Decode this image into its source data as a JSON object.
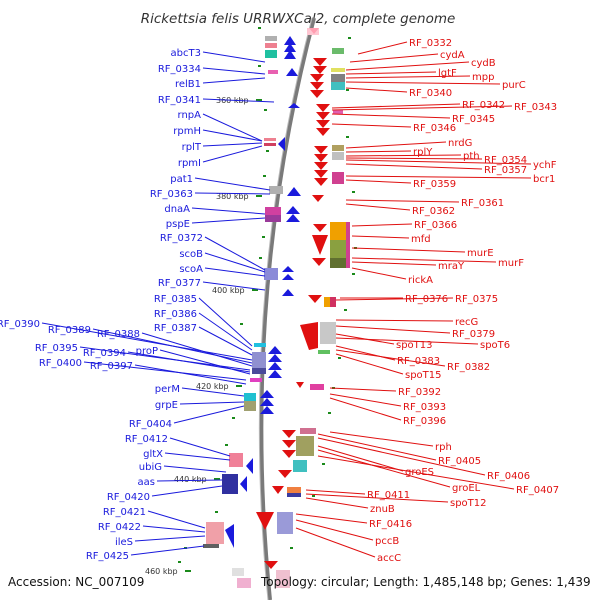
{
  "title": "Rickettsia felis URRWXCal2, complete genome",
  "footer": {
    "accession": "Accession: NC_007109",
    "topology": "Topology: circular; Length: 1,485,148 bp; Genes: 1,439"
  },
  "scale_ticks": [
    {
      "label": "360 kbp"
    },
    {
      "label": "380 kbp"
    },
    {
      "label": "400 kbp"
    },
    {
      "label": "420 kbp"
    },
    {
      "label": "440 kbp"
    },
    {
      "label": "460 kbp"
    }
  ],
  "left_genes": [
    {
      "label": "abcT3"
    },
    {
      "label": "RF_0334"
    },
    {
      "label": "relB1"
    },
    {
      "label": "RF_0341"
    },
    {
      "label": "rnpA"
    },
    {
      "label": "rpmH"
    },
    {
      "label": "rplT"
    },
    {
      "label": "rpmI"
    },
    {
      "label": "pat1"
    },
    {
      "label": "RF_0363"
    },
    {
      "label": "dnaA"
    },
    {
      "label": "pspE"
    },
    {
      "label": "RF_0372"
    },
    {
      "label": "scoB"
    },
    {
      "label": "scoA"
    },
    {
      "label": "RF_0377"
    },
    {
      "label": "RF_0385"
    },
    {
      "label": "RF_0386"
    },
    {
      "label": "RF_0387"
    },
    {
      "label": "RF_0390"
    },
    {
      "label": "RF_0389"
    },
    {
      "label": "RF_0388"
    },
    {
      "label": "RF_0395"
    },
    {
      "label": "RF_0394"
    },
    {
      "label": "proP"
    },
    {
      "label": "RF_0400"
    },
    {
      "label": "RF_0397"
    },
    {
      "label": "perM"
    },
    {
      "label": "grpE"
    },
    {
      "label": "RF_0404"
    },
    {
      "label": "RF_0412"
    },
    {
      "label": "gltX"
    },
    {
      "label": "ubiG"
    },
    {
      "label": "aas"
    },
    {
      "label": "RF_0420"
    },
    {
      "label": "RF_0421"
    },
    {
      "label": "RF_0422"
    },
    {
      "label": "ileS"
    },
    {
      "label": "RF_0425"
    }
  ],
  "right_genes": [
    {
      "label": "RF_0332"
    },
    {
      "label": "cydA"
    },
    {
      "label": "cydB"
    },
    {
      "label": "lgtF"
    },
    {
      "label": "mpp"
    },
    {
      "label": "purC"
    },
    {
      "label": "RF_0340"
    },
    {
      "label": "RF_0342"
    },
    {
      "label": "RF_0343"
    },
    {
      "label": "RF_0345"
    },
    {
      "label": "RF_0346"
    },
    {
      "label": "nrdG"
    },
    {
      "label": "rplY"
    },
    {
      "label": "pth"
    },
    {
      "label": "RF_0354"
    },
    {
      "label": "ychF"
    },
    {
      "label": "RF_0357"
    },
    {
      "label": "bcr1"
    },
    {
      "label": "RF_0359"
    },
    {
      "label": "RF_0361"
    },
    {
      "label": "RF_0362"
    },
    {
      "label": "RF_0366"
    },
    {
      "label": "mfd"
    },
    {
      "label": "murE"
    },
    {
      "label": "murF"
    },
    {
      "label": "mraY"
    },
    {
      "label": "rickA"
    },
    {
      "label": "RF_0376"
    },
    {
      "label": "RF_0375"
    },
    {
      "label": "recG"
    },
    {
      "label": "RF_0379"
    },
    {
      "label": "spoT13"
    },
    {
      "label": "spoT6"
    },
    {
      "label": "RF_0383"
    },
    {
      "label": "RF_0382"
    },
    {
      "label": "spoT15"
    },
    {
      "label": "RF_0392"
    },
    {
      "label": "RF_0393"
    },
    {
      "label": "RF_0396"
    },
    {
      "label": "rph"
    },
    {
      "label": "RF_0405"
    },
    {
      "label": "RF_0406"
    },
    {
      "label": "groES"
    },
    {
      "label": "groEL"
    },
    {
      "label": "RF_0407"
    },
    {
      "label": "RF_0411"
    },
    {
      "label": "spoT12"
    },
    {
      "label": "znuB"
    },
    {
      "label": "RF_0416"
    },
    {
      "label": "pccB"
    },
    {
      "label": "accC"
    }
  ],
  "colors": {
    "backbone": "#777777",
    "forward_strand": "#1a1adc",
    "reverse_strand": "#e01010",
    "tick": "#1a8a1a"
  }
}
